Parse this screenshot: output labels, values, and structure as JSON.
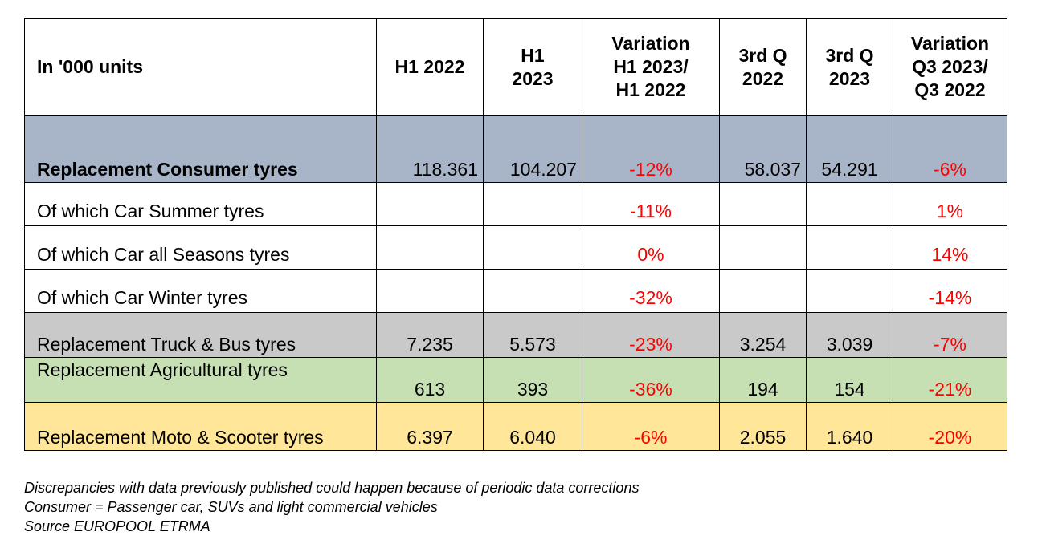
{
  "chart_data": {
    "type": "table",
    "columns": [
      "In '000 units",
      "H1 2022",
      "H1 2023",
      "Variation H1 2023/ H1 2022",
      "3rd Q 2022",
      "3rd Q 2023",
      "Variation Q3 2023/ Q3 2022"
    ],
    "header_lines": [
      [
        "In '000 units"
      ],
      [
        "H1 2022"
      ],
      [
        "H1",
        "2023"
      ],
      [
        "Variation",
        "H1 2023/",
        "H1 2022"
      ],
      [
        "3rd Q",
        "2022"
      ],
      [
        "3rd Q",
        "2023"
      ],
      [
        "Variation",
        "Q3 2023/",
        "Q3 2022"
      ]
    ],
    "rows": [
      {
        "label": "Replacement Consumer tyres",
        "h1_2022": "118.361",
        "h1_2023": "104.207",
        "var_h1": "-12%",
        "q3_2022": "58.037",
        "q3_2023": "54.291",
        "var_q3": "-6%"
      },
      {
        "label": "Of which Car Summer tyres",
        "h1_2022": "",
        "h1_2023": "",
        "var_h1": "-11%",
        "q3_2022": "",
        "q3_2023": "",
        "var_q3": "1%"
      },
      {
        "label": "Of which Car all Seasons tyres",
        "h1_2022": "",
        "h1_2023": "",
        "var_h1": "0%",
        "q3_2022": "",
        "q3_2023": "",
        "var_q3": "14%"
      },
      {
        "label": "Of which Car Winter tyres",
        "h1_2022": "",
        "h1_2023": "",
        "var_h1": "-32%",
        "q3_2022": "",
        "q3_2023": "",
        "var_q3": "-14%"
      },
      {
        "label": "Replacement Truck & Bus tyres",
        "h1_2022": "7.235",
        "h1_2023": "5.573",
        "var_h1": "-23%",
        "q3_2022": "3.254",
        "q3_2023": "3.039",
        "var_q3": "-7%"
      },
      {
        "label": "Replacement Agricultural tyres",
        "h1_2022": "613",
        "h1_2023": "393",
        "var_h1": "-36%",
        "q3_2022": "194",
        "q3_2023": "154",
        "var_q3": "-21%"
      },
      {
        "label": "Replacement Moto & Scooter tyres",
        "h1_2022": "6.397",
        "h1_2023": "6.040",
        "var_h1": "-6%",
        "q3_2022": "2.055",
        "q3_2023": "1.640",
        "var_q3": "-20%"
      }
    ],
    "row_colors": [
      "#a8b4c8",
      "#ffffff",
      "#ffffff",
      "#ffffff",
      "#c9c9c9",
      "#c6e0b4",
      "#ffe699"
    ],
    "variation_color": "#ff0000"
  },
  "notes": [
    "Discrepancies with data previously published could happen because of periodic data corrections",
    "Consumer = Passenger car, SUVs and light commercial vehicles",
    "Source EUROPOOL ETRMA"
  ]
}
